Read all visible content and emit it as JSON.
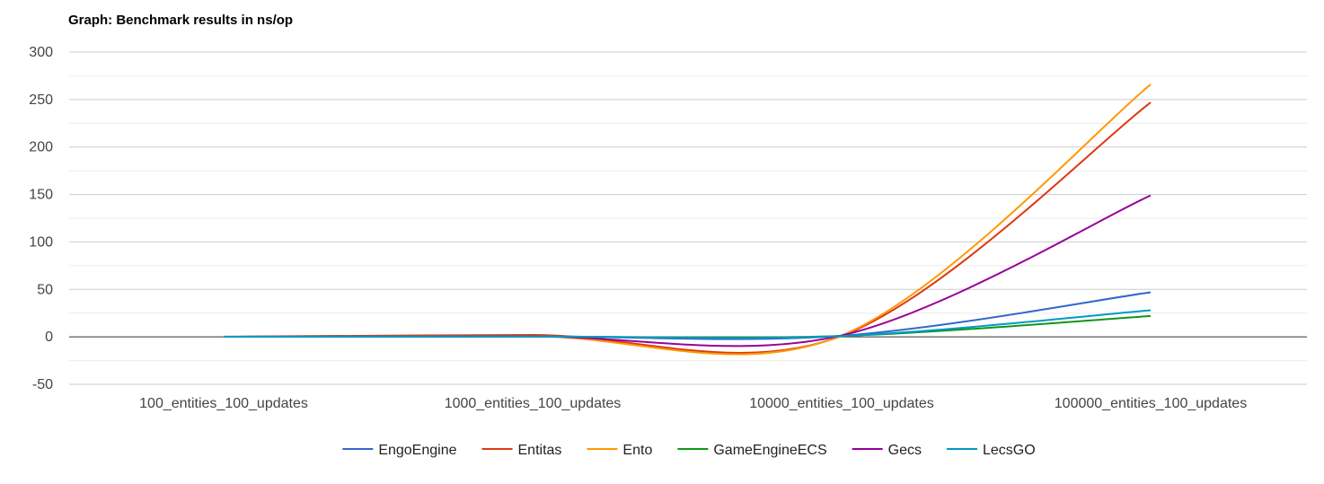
{
  "chart_data": {
    "type": "line",
    "title": "Graph: Benchmark results in ns/op",
    "xlabel": "",
    "ylabel": "",
    "categories": [
      "100_entities_100_updates",
      "1000_entities_100_updates",
      "10000_entities_100_updates",
      "100000_entities_100_updates"
    ],
    "ylim": [
      -50,
      300
    ],
    "yticks": [
      -50,
      0,
      50,
      100,
      150,
      200,
      250,
      300
    ],
    "ytick_labels": [
      "-50",
      "0",
      "50",
      "100",
      "150",
      "200",
      "250",
      "300"
    ],
    "grid": true,
    "curve": "smooth",
    "legend_position": "bottom",
    "series": [
      {
        "name": "EngoEngine",
        "color": "#3366cc",
        "values": [
          0.1,
          0.5,
          1.2,
          47
        ]
      },
      {
        "name": "Entitas",
        "color": "#dc3912",
        "values": [
          0.2,
          2.0,
          1.0,
          247
        ]
      },
      {
        "name": "Ento",
        "color": "#ff9900",
        "values": [
          0.1,
          0.6,
          1.5,
          266
        ]
      },
      {
        "name": "GameEngineECS",
        "color": "#109618",
        "values": [
          0.1,
          0.4,
          1.0,
          22
        ]
      },
      {
        "name": "Gecs",
        "color": "#990099",
        "values": [
          0.1,
          0.5,
          1.5,
          149
        ]
      },
      {
        "name": "LecsGO",
        "color": "#0099c6",
        "values": [
          0.1,
          0.4,
          0.9,
          28
        ]
      }
    ]
  }
}
